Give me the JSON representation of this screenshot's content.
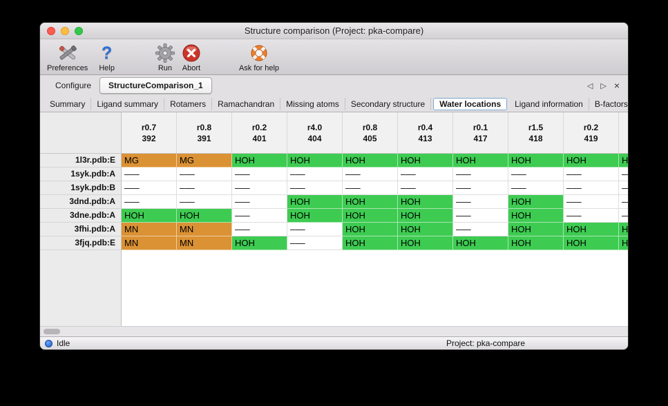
{
  "window": {
    "title": "Structure comparison (Project: pka-compare)"
  },
  "icons": {
    "help_question": "?"
  },
  "toolbar": {
    "preferences_label": "Preferences",
    "help_label": "Help",
    "run_label": "Run",
    "abort_label": "Abort",
    "ask_for_help_label": "Ask for help"
  },
  "tab_bar": {
    "tabs": [
      {
        "label": "Configure",
        "active": false
      },
      {
        "label": "StructureComparison_1",
        "active": true
      }
    ],
    "back_icon": "◁",
    "forward_icon": "▷",
    "close_icon": "×"
  },
  "subtab_bar": {
    "tabs": [
      "Summary",
      "Ligand summary",
      "Rotamers",
      "Ramachandran",
      "Missing atoms",
      "Secondary structure",
      "Water locations",
      "Ligand information",
      "B-factors"
    ],
    "selected": "Water locations",
    "back_icon": "◁",
    "forward_icon": "▷"
  },
  "table": {
    "columns": [
      {
        "line1": "r0.7",
        "line2": "392"
      },
      {
        "line1": "r0.8",
        "line2": "391"
      },
      {
        "line1": "r0.2",
        "line2": "401"
      },
      {
        "line1": "r4.0",
        "line2": "404"
      },
      {
        "line1": "r0.8",
        "line2": "405"
      },
      {
        "line1": "r0.4",
        "line2": "413"
      },
      {
        "line1": "r0.1",
        "line2": "417"
      },
      {
        "line1": "r1.5",
        "line2": "418"
      },
      {
        "line1": "r0.2",
        "line2": "419"
      },
      {
        "line1": "",
        "line2": ""
      }
    ],
    "rows": [
      {
        "label": "1l3r.pdb:E",
        "cells": [
          {
            "text": "MG",
            "type": "metal"
          },
          {
            "text": "MG",
            "type": "metal"
          },
          {
            "text": "HOH",
            "type": "water"
          },
          {
            "text": "HOH",
            "type": "water"
          },
          {
            "text": "HOH",
            "type": "water"
          },
          {
            "text": "HOH",
            "type": "water"
          },
          {
            "text": "HOH",
            "type": "water"
          },
          {
            "text": "HOH",
            "type": "water"
          },
          {
            "text": "HOH",
            "type": "water"
          },
          {
            "text": "HOH",
            "type": "water"
          }
        ]
      },
      {
        "label": "1syk.pdb:A",
        "cells": [
          {
            "text": "–––",
            "type": "absent"
          },
          {
            "text": "–––",
            "type": "absent"
          },
          {
            "text": "–––",
            "type": "absent"
          },
          {
            "text": "–––",
            "type": "absent"
          },
          {
            "text": "–––",
            "type": "absent"
          },
          {
            "text": "–––",
            "type": "absent"
          },
          {
            "text": "–––",
            "type": "absent"
          },
          {
            "text": "–––",
            "type": "absent"
          },
          {
            "text": "–––",
            "type": "absent"
          },
          {
            "text": "–––",
            "type": "absent"
          }
        ]
      },
      {
        "label": "1syk.pdb:B",
        "cells": [
          {
            "text": "–––",
            "type": "absent"
          },
          {
            "text": "–––",
            "type": "absent"
          },
          {
            "text": "–––",
            "type": "absent"
          },
          {
            "text": "–––",
            "type": "absent"
          },
          {
            "text": "–––",
            "type": "absent"
          },
          {
            "text": "–––",
            "type": "absent"
          },
          {
            "text": "–––",
            "type": "absent"
          },
          {
            "text": "–––",
            "type": "absent"
          },
          {
            "text": "–––",
            "type": "absent"
          },
          {
            "text": "–––",
            "type": "absent"
          }
        ]
      },
      {
        "label": "3dnd.pdb:A",
        "cells": [
          {
            "text": "–––",
            "type": "absent"
          },
          {
            "text": "–––",
            "type": "absent"
          },
          {
            "text": "–––",
            "type": "absent"
          },
          {
            "text": "HOH",
            "type": "water"
          },
          {
            "text": "HOH",
            "type": "water"
          },
          {
            "text": "HOH",
            "type": "water"
          },
          {
            "text": "–––",
            "type": "absent"
          },
          {
            "text": "HOH",
            "type": "water"
          },
          {
            "text": "–––",
            "type": "absent"
          },
          {
            "text": "–––",
            "type": "absent"
          }
        ]
      },
      {
        "label": "3dne.pdb:A",
        "cells": [
          {
            "text": "HOH",
            "type": "water"
          },
          {
            "text": "HOH",
            "type": "water"
          },
          {
            "text": "–––",
            "type": "absent"
          },
          {
            "text": "HOH",
            "type": "water"
          },
          {
            "text": "HOH",
            "type": "water"
          },
          {
            "text": "HOH",
            "type": "water"
          },
          {
            "text": "–––",
            "type": "absent"
          },
          {
            "text": "HOH",
            "type": "water"
          },
          {
            "text": "–––",
            "type": "absent"
          },
          {
            "text": "–––",
            "type": "absent"
          }
        ]
      },
      {
        "label": "3fhi.pdb:A",
        "cells": [
          {
            "text": "MN",
            "type": "metal"
          },
          {
            "text": "MN",
            "type": "metal"
          },
          {
            "text": "–––",
            "type": "absent"
          },
          {
            "text": "–––",
            "type": "absent"
          },
          {
            "text": "HOH",
            "type": "water"
          },
          {
            "text": "HOH",
            "type": "water"
          },
          {
            "text": "–––",
            "type": "absent"
          },
          {
            "text": "HOH",
            "type": "water"
          },
          {
            "text": "HOH",
            "type": "water"
          },
          {
            "text": "HOH",
            "type": "water"
          }
        ]
      },
      {
        "label": "3fjq.pdb:E",
        "cells": [
          {
            "text": "MN",
            "type": "metal"
          },
          {
            "text": "MN",
            "type": "metal"
          },
          {
            "text": "HOH",
            "type": "water"
          },
          {
            "text": "–––",
            "type": "absent"
          },
          {
            "text": "HOH",
            "type": "water"
          },
          {
            "text": "HOH",
            "type": "water"
          },
          {
            "text": "HOH",
            "type": "water"
          },
          {
            "text": "HOH",
            "type": "water"
          },
          {
            "text": "HOH",
            "type": "water"
          },
          {
            "text": "HOH",
            "type": "water"
          }
        ]
      }
    ]
  },
  "status_bar": {
    "status": "Idle",
    "project": "Project: pka-compare"
  },
  "colors": {
    "water_green": "#3ecb52",
    "metal_orange": "#db9234",
    "status_blue": "#1c5ecf"
  }
}
